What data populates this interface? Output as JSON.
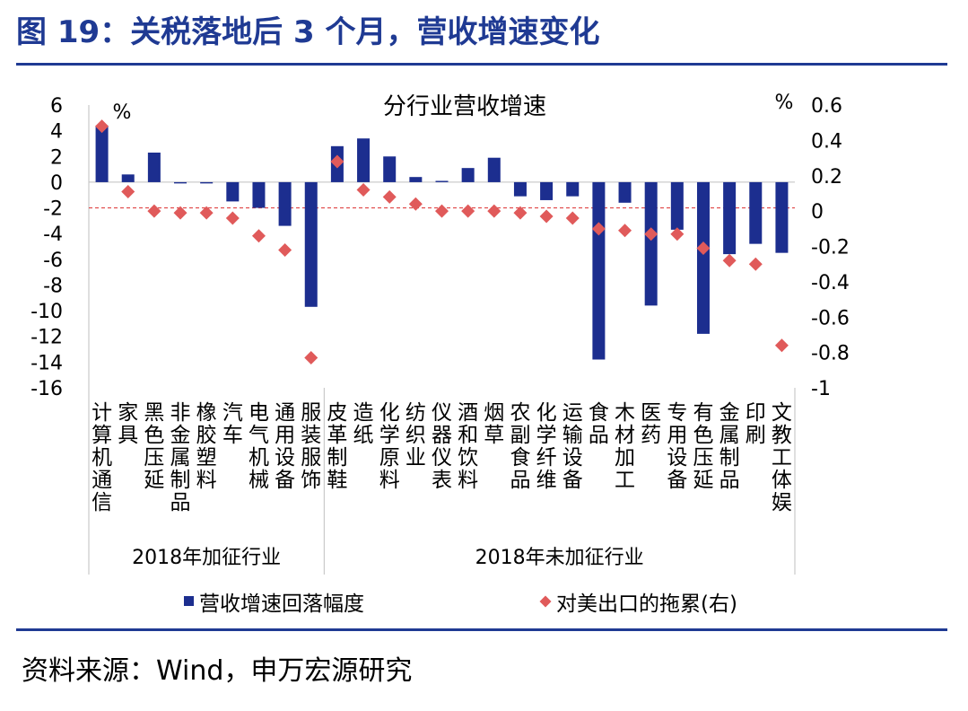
{
  "figure_title": "图 19：关税落地后 3 个月，营收增速变化",
  "source": "资料来源：Wind，申万宏源研究",
  "colors": {
    "title": "#1f3a93",
    "bar": "#1c2e8f",
    "marker": "#e05a5a",
    "refline": "#e04545",
    "axis": "#bfbfbf"
  },
  "chart_data": {
    "type": "bar",
    "title": "分行业营收增速",
    "left_unit": "%",
    "right_unit": "%",
    "categories": [
      "计算机通信",
      "家具",
      "黑色压延",
      "非金属制品",
      "橡胶塑料",
      "汽车",
      "电气机械",
      "通用设备",
      "服装服饰",
      "皮革制鞋",
      "造纸",
      "化学原料",
      "纺织业",
      "仪器仪表",
      "酒和饮料",
      "烟草",
      "农副食品",
      "化学纤维",
      "运输设备",
      "食品",
      "木材加工",
      "医药",
      "专用设备",
      "有色压延",
      "金属制品",
      "印刷",
      "文教工体娱"
    ],
    "group_labels": [
      "2018年加征行业",
      "2018年未加征行业"
    ],
    "group_sizes": [
      9,
      18
    ],
    "y_left": {
      "min": -16,
      "max": 6,
      "ticks": [
        6,
        4,
        2,
        0,
        -2,
        -4,
        -6,
        -8,
        -10,
        -12,
        -14,
        -16
      ],
      "tick_labels": [
        "6",
        "4",
        "2",
        "0",
        "-2",
        "-4",
        "-6",
        "-8",
        "-10",
        "-12",
        "-14",
        "-16"
      ]
    },
    "y_right": {
      "min": -1,
      "max": 0.6,
      "ticks": [
        0.6,
        0.4,
        0.2,
        0,
        -0.2,
        -0.4,
        -0.6,
        -0.8,
        -1
      ],
      "tick_labels": [
        "0.6",
        "0.4",
        "0.2",
        "0",
        "-0.2",
        "-0.4",
        "-0.6",
        "-0.8",
        "-1"
      ]
    },
    "reference_line_left": -2,
    "series": [
      {
        "name": "营收增速回落幅度",
        "axis": "left",
        "kind": "bar",
        "values": [
          4.4,
          0.6,
          2.3,
          -0.1,
          -0.1,
          -1.5,
          -2.0,
          -3.4,
          -9.7,
          2.8,
          3.4,
          2.0,
          0.4,
          0.1,
          1.1,
          1.9,
          -1.1,
          -1.4,
          -1.1,
          -13.8,
          -1.6,
          -9.6,
          -3.7,
          -11.8,
          -5.6,
          -4.8,
          -5.5
        ]
      },
      {
        "name": "对美出口的拖累(右)",
        "axis": "right",
        "kind": "marker",
        "values": [
          0.48,
          0.11,
          0.0,
          -0.01,
          -0.01,
          -0.04,
          -0.14,
          -0.22,
          -0.83,
          0.28,
          0.12,
          0.08,
          0.04,
          0.0,
          0.0,
          0.0,
          -0.01,
          -0.03,
          -0.04,
          -0.1,
          -0.11,
          -0.13,
          -0.13,
          -0.21,
          -0.28,
          -0.3,
          -0.76
        ]
      }
    ]
  }
}
